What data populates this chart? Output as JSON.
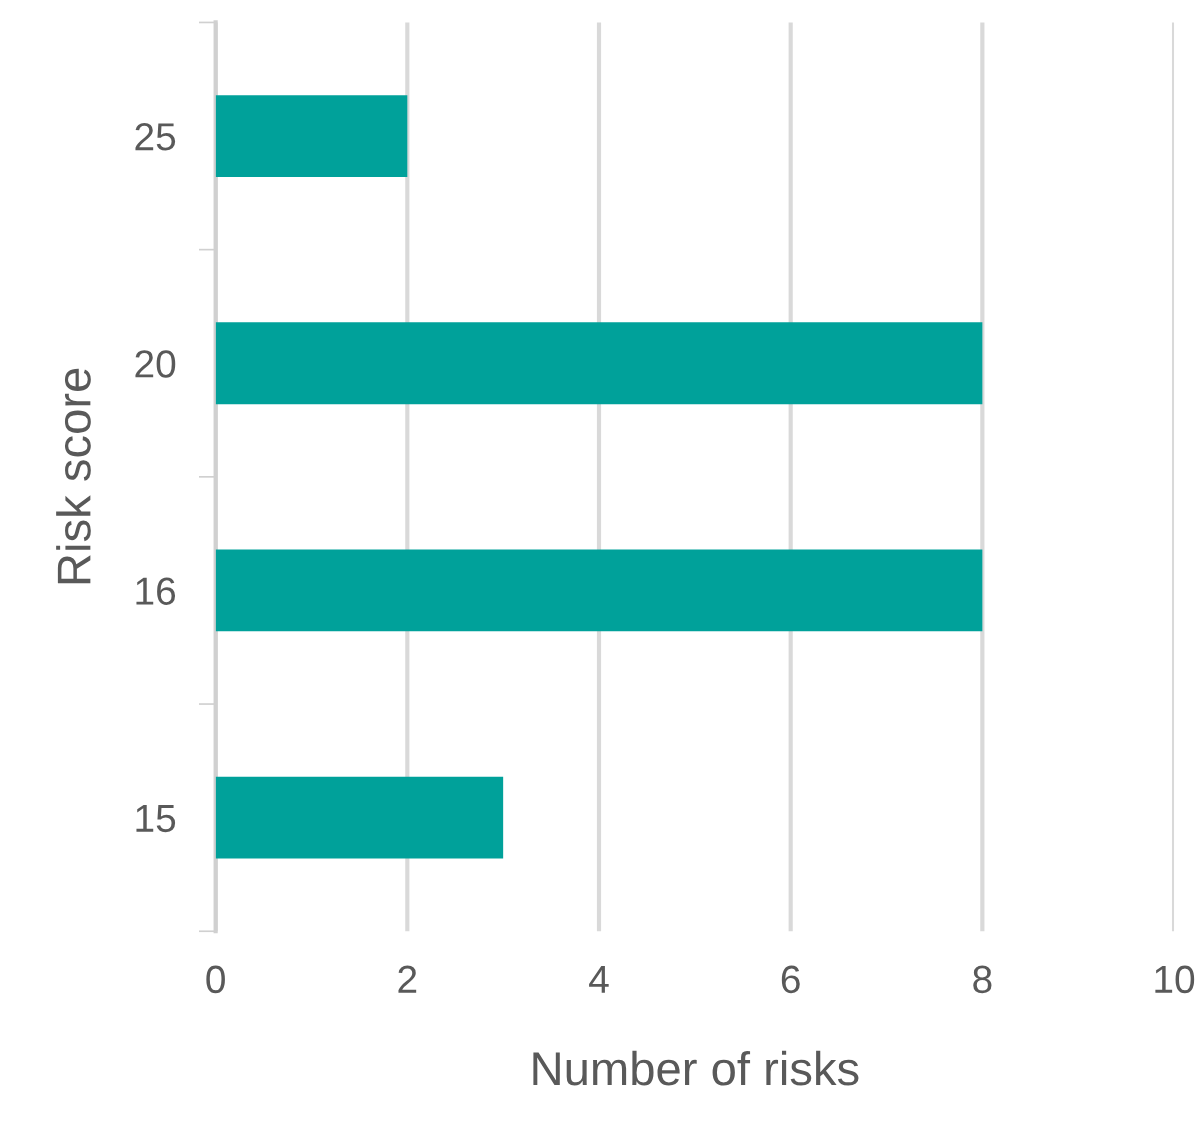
{
  "chart_data": {
    "type": "bar",
    "orientation": "horizontal",
    "categories": [
      "25",
      "20",
      "16",
      "15"
    ],
    "values": [
      2,
      8,
      8,
      3
    ],
    "color": "#00a19a",
    "xlim": [
      0,
      10
    ],
    "xticks": [
      0,
      2,
      4,
      6,
      8,
      10
    ],
    "grid": "x",
    "xlabel": "Number of risks",
    "ylabel": "Risk score",
    "legend": false
  }
}
